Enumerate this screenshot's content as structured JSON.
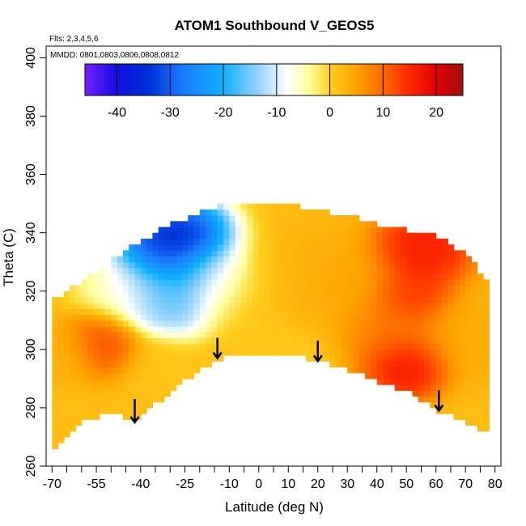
{
  "chart_data": {
    "type": "heatmap",
    "title": "ATOM1 Southbound V_GEOS5",
    "flights_note": "Flts: 2,3,4,5,6",
    "dates_note": "MMDD: 0801,0803,0806,0808,0812",
    "xlabel": "Latitude (deg N)",
    "ylabel": "Theta (C)",
    "xlim": [
      -72,
      82
    ],
    "ylim": [
      260,
      404
    ],
    "x_ticks": [
      -70,
      -55,
      -40,
      -25,
      -10,
      0,
      10,
      20,
      30,
      40,
      50,
      60,
      70,
      80
    ],
    "x_minor_ticks": [
      -65,
      -60,
      -50,
      -45,
      -35,
      -30,
      -20,
      -15,
      -5,
      5,
      15,
      25,
      35,
      45,
      55,
      65,
      75
    ],
    "y_ticks": [
      260,
      280,
      300,
      320,
      340,
      360,
      380,
      400
    ],
    "colorbar": {
      "min": -46,
      "max": 25,
      "ticks": [
        -40,
        -30,
        -20,
        -10,
        0,
        10,
        20
      ],
      "stops": [
        {
          "v": -46,
          "c": "#7a1cff"
        },
        {
          "v": -40,
          "c": "#1010e0"
        },
        {
          "v": -34,
          "c": "#0030d8"
        },
        {
          "v": -28,
          "c": "#1a78ff"
        },
        {
          "v": -20,
          "c": "#10b0ff"
        },
        {
          "v": -14,
          "c": "#8ad0ff"
        },
        {
          "v": -8,
          "c": "#ffffff"
        },
        {
          "v": -4,
          "c": "#ffffa0"
        },
        {
          "v": 0,
          "c": "#ffd020"
        },
        {
          "v": 5,
          "c": "#ffa000"
        },
        {
          "v": 10,
          "c": "#ff6a00"
        },
        {
          "v": 15,
          "c": "#ff2800"
        },
        {
          "v": 20,
          "c": "#e00000"
        },
        {
          "v": 25,
          "c": "#a01010"
        }
      ]
    },
    "domain_top_theta": [
      [
        -70,
        316
      ],
      [
        -60,
        322
      ],
      [
        -50,
        330
      ],
      [
        -40,
        336
      ],
      [
        -30,
        342
      ],
      [
        -20,
        346
      ],
      [
        -10,
        349
      ],
      [
        0,
        350
      ],
      [
        10,
        349
      ],
      [
        20,
        347
      ],
      [
        30,
        345
      ],
      [
        40,
        342
      ],
      [
        50,
        340
      ],
      [
        60,
        338
      ],
      [
        70,
        332
      ],
      [
        78,
        322
      ]
    ],
    "domain_bottom_theta": [
      [
        -70,
        266
      ],
      [
        -60,
        276
      ],
      [
        -50,
        279
      ],
      [
        -41,
        276
      ],
      [
        -35,
        282
      ],
      [
        -25,
        290
      ],
      [
        -15,
        297
      ],
      [
        -8,
        300
      ],
      [
        0,
        299
      ],
      [
        10,
        299
      ],
      [
        20,
        297
      ],
      [
        30,
        294
      ],
      [
        40,
        290
      ],
      [
        50,
        287
      ],
      [
        60,
        280
      ],
      [
        70,
        276
      ],
      [
        78,
        272
      ]
    ],
    "wind_field": [
      {
        "lat": -52,
        "theta": 303,
        "v": 15,
        "r": 10
      },
      {
        "lat": -27,
        "theta": 335,
        "v": -42,
        "r": 14
      },
      {
        "lat": -28,
        "theta": 322,
        "v": -20,
        "r": 14
      },
      {
        "lat": -33,
        "theta": 315,
        "v": -16,
        "r": 10
      },
      {
        "lat": -15,
        "theta": 325,
        "v": -10,
        "r": 10
      },
      {
        "lat": -45,
        "theta": 318,
        "v": -6,
        "r": 12
      },
      {
        "lat": -8,
        "theta": 320,
        "v": -2,
        "r": 12
      },
      {
        "lat": 5,
        "theta": 320,
        "v": 2,
        "r": 20
      },
      {
        "lat": 25,
        "theta": 320,
        "v": 5,
        "r": 18
      },
      {
        "lat": 55,
        "theta": 334,
        "v": 18,
        "r": 12
      },
      {
        "lat": 52,
        "theta": 318,
        "v": 16,
        "r": 10
      },
      {
        "lat": 50,
        "theta": 295,
        "v": 20,
        "r": 10
      },
      {
        "lat": 45,
        "theta": 305,
        "v": 10,
        "r": 14
      },
      {
        "lat": 70,
        "theta": 305,
        "v": 4,
        "r": 14
      },
      {
        "lat": 10,
        "theta": 300,
        "v": 0,
        "r": 14
      },
      {
        "lat": -35,
        "theta": 297,
        "v": 1,
        "r": 10
      },
      {
        "lat": -65,
        "theta": 300,
        "v": 3,
        "r": 10
      }
    ],
    "flight_arrows": [
      {
        "lat": -42,
        "theta_from": 283,
        "theta_to": 275
      },
      {
        "lat": -14,
        "theta_from": 304,
        "theta_to": 297
      },
      {
        "lat": 20,
        "theta_from": 303,
        "theta_to": 296
      },
      {
        "lat": 61,
        "theta_from": 286,
        "theta_to": 279
      }
    ]
  }
}
